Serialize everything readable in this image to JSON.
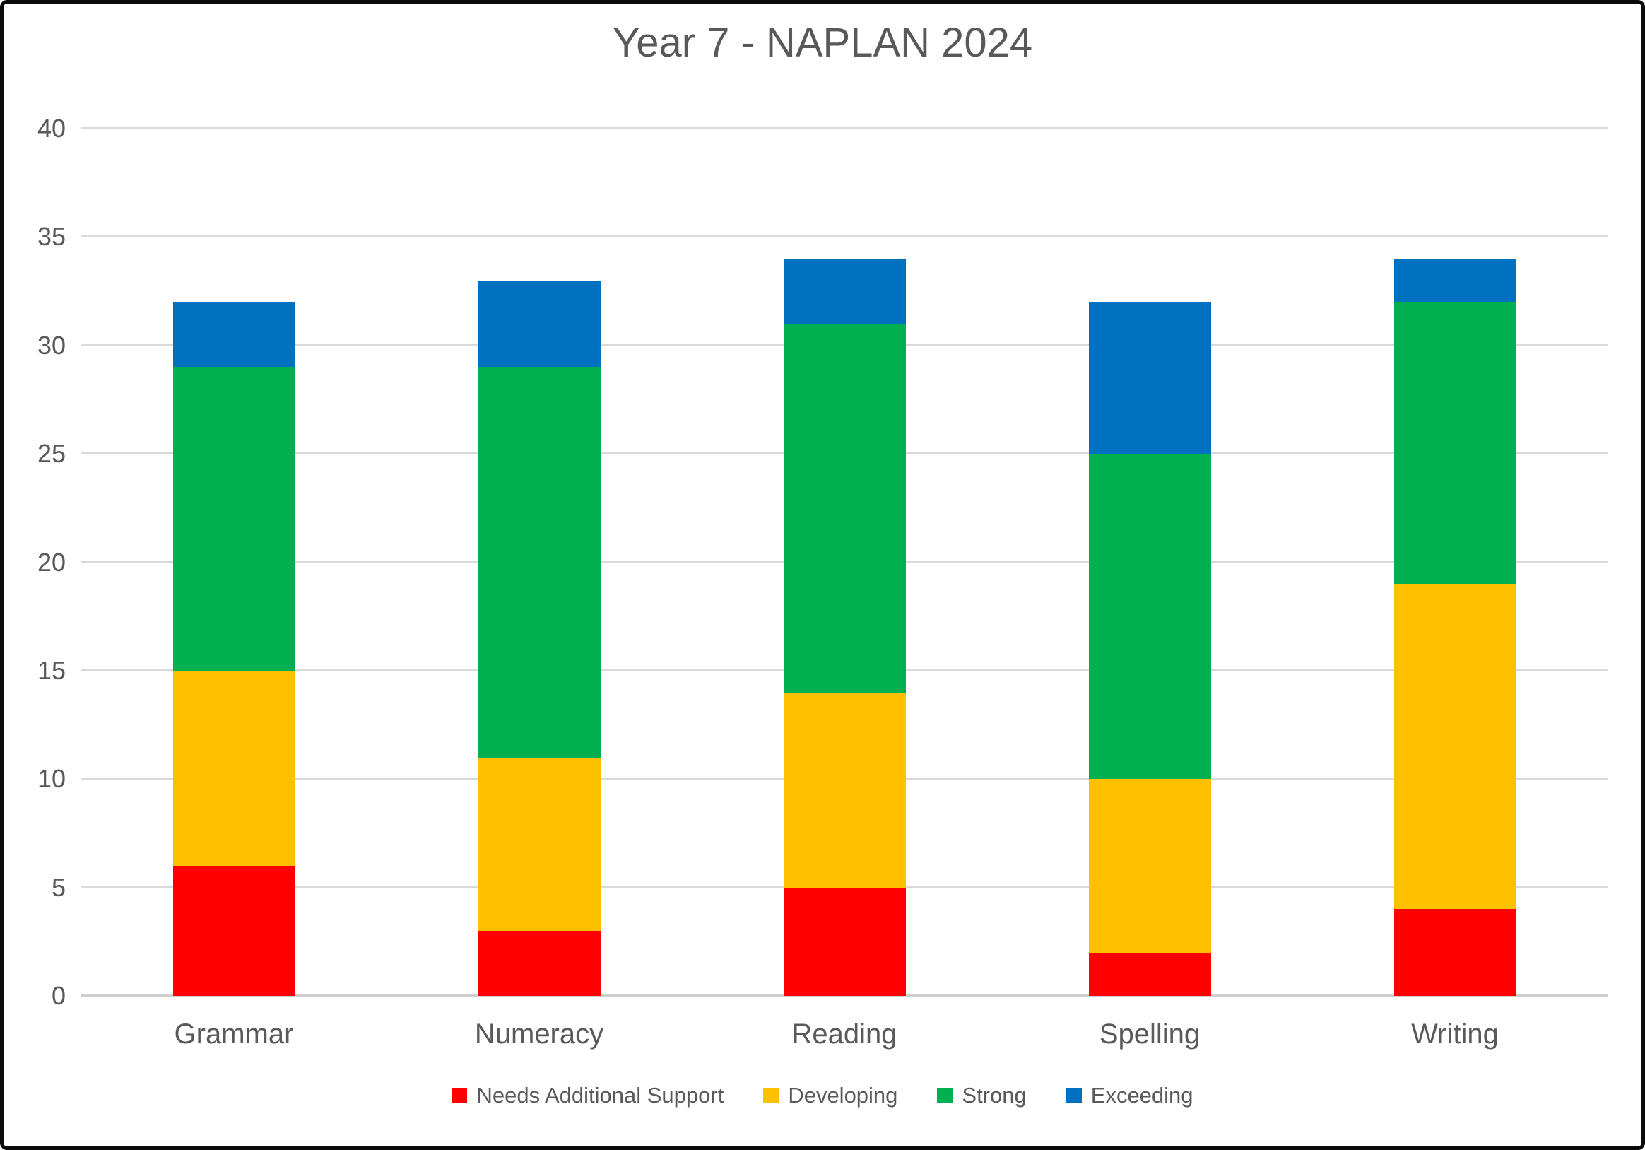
{
  "title": "Year 7 - NAPLAN 2024",
  "colors": {
    "background": "#FFFFFF",
    "frame_border": "#0A0A0A",
    "gridline": "#D9D9D9",
    "axis_text": "#595959",
    "needs_additional_support": "#FF0000",
    "developing": "#FFC000",
    "strong": "#00B050",
    "exceeding": "#0070C0"
  },
  "chart_data": {
    "type": "bar",
    "stacked": true,
    "title": "Year 7 - NAPLAN 2024",
    "xlabel": "",
    "ylabel": "",
    "ylim": [
      0,
      40
    ],
    "ytick_step": 5,
    "yticks": [
      0,
      5,
      10,
      15,
      20,
      25,
      30,
      35,
      40
    ],
    "grid": "horizontal",
    "legend_position": "bottom",
    "categories": [
      "Grammar",
      "Numeracy",
      "Reading",
      "Spelling",
      "Writing"
    ],
    "series": [
      {
        "name": "Needs Additional Support",
        "color": "#FF0000",
        "values": [
          6,
          3,
          5,
          2,
          4
        ]
      },
      {
        "name": "Developing",
        "color": "#FFC000",
        "values": [
          9,
          8,
          9,
          8,
          15
        ]
      },
      {
        "name": "Strong",
        "color": "#00B050",
        "values": [
          14,
          18,
          17,
          15,
          13
        ]
      },
      {
        "name": "Exceeding",
        "color": "#0070C0",
        "values": [
          3,
          4,
          3,
          7,
          2
        ]
      }
    ],
    "stack_totals": [
      32,
      33,
      34,
      32,
      34
    ]
  }
}
